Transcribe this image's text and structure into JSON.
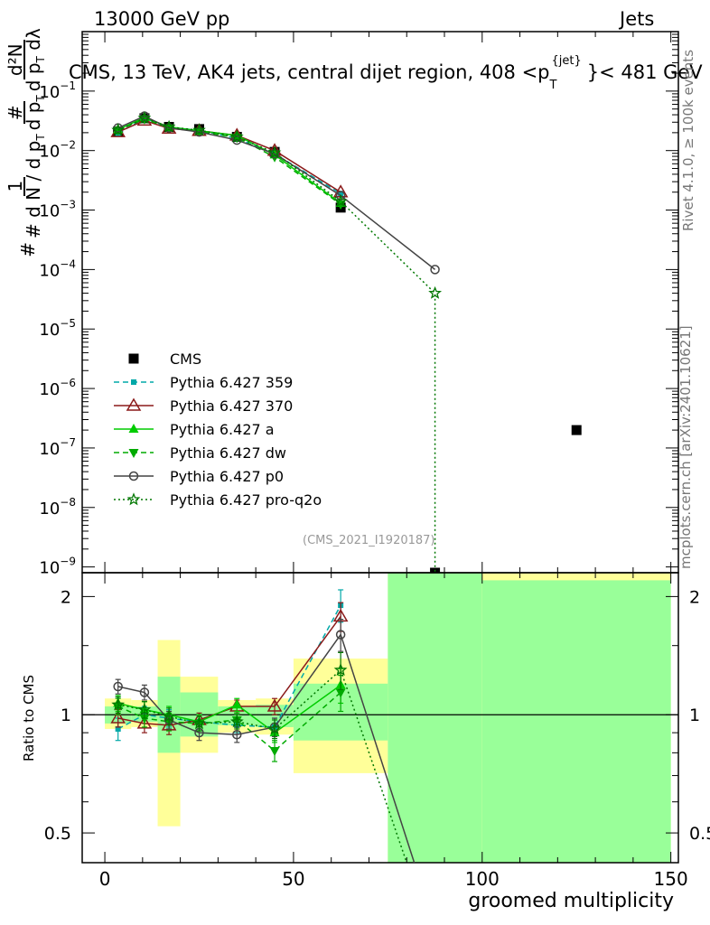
{
  "header": {
    "left": "13000 GeV pp",
    "right": "Jets",
    "plot_title": "CMS, 13 TeV, AK4 jets, central dijet region, 408 <p",
    "plot_title_sup": "{jet}",
    "plot_title_sub": "T",
    "plot_title_end": "}< 481 GeV",
    "side_right_top": "Rivet 4.1.0, ≥ 100k events",
    "side_right_bottom": "mcplots.cern.ch [arXiv:2401.10621]",
    "analysis_id": "(CMS_2021_I1920187)"
  },
  "ylabel_main": {
    "frac1_num": "1",
    "frac1_den": "# d N / d p",
    "frac1_den_sub": "T",
    "frac2_num": "#",
    "frac2_den": "d p",
    "frac2_den_sub": "T",
    "hash_left": "#",
    "frac3_num": "d²N",
    "frac3_den": "d p",
    "frac3_den_sub": "T",
    "frac3_den_end": "dλ"
  },
  "colors": {
    "CMS": "#000000",
    "Pythia 6.427 359": "#00a8a8",
    "Pythia 6.427 370": "#8b1a1a",
    "Pythia 6.427 a": "#00cc00",
    "Pythia 6.427 dw": "#00aa00",
    "Pythia 6.427 p0": "#444444",
    "Pythia 6.427 pro-q2o": "#007700",
    "band_yellow": "#ffff99",
    "band_green": "#99ff99"
  },
  "chart_data": [
    {
      "type": "scatter",
      "panel": "main",
      "xlabel": "groomed multiplicity",
      "ylim": [
        8e-10,
        1
      ],
      "log_y": true,
      "yticks": [
        1e-09,
        1e-08,
        1e-07,
        1e-06,
        1e-05,
        0.0001,
        0.001,
        0.01,
        0.1
      ],
      "ytick_labels": [
        "10^-9",
        "10^-8",
        "10^-7",
        "10^-6",
        "10^-5",
        "10^-4",
        "10^-3",
        "10^-2",
        "10^-1"
      ],
      "xlim": [
        -6,
        152
      ],
      "legend_position": "lower-left",
      "series": [
        {
          "name": "CMS",
          "style": "square",
          "dash": "none",
          "x": [
            3.5,
            10.5,
            17,
            25,
            35,
            45,
            62.5,
            87.5,
            125
          ],
          "y": [
            0.021,
            0.035,
            0.025,
            0.023,
            0.017,
            0.0095,
            0.0011,
            8e-10,
            2e-07
          ]
        },
        {
          "name": "Pythia 6.427 359",
          "style": "smallsquare",
          "dash": "dashed",
          "x": [
            3.5,
            10.5,
            17,
            25,
            35,
            45,
            62.5
          ],
          "y": [
            0.0195,
            0.035,
            0.0245,
            0.022,
            0.016,
            0.0088,
            0.0019
          ]
        },
        {
          "name": "Pythia 6.427 370",
          "style": "opentriangle",
          "dash": "solid",
          "x": [
            3.5,
            10.5,
            17,
            25,
            35,
            45,
            62.5
          ],
          "y": [
            0.0205,
            0.032,
            0.0235,
            0.0215,
            0.018,
            0.01,
            0.002
          ]
        },
        {
          "name": "Pythia 6.427 a",
          "style": "triangle",
          "dash": "solid",
          "x": [
            3.5,
            10.5,
            17,
            25,
            35,
            45,
            62.5
          ],
          "y": [
            0.0225,
            0.036,
            0.025,
            0.0215,
            0.018,
            0.0085,
            0.0013
          ]
        },
        {
          "name": "Pythia 6.427 dw",
          "style": "downtriangle",
          "dash": "dashed",
          "x": [
            3.5,
            10.5,
            17,
            25,
            35,
            45,
            62.5
          ],
          "y": [
            0.022,
            0.034,
            0.024,
            0.021,
            0.0165,
            0.0078,
            0.00125
          ]
        },
        {
          "name": "Pythia 6.427 p0",
          "style": "opencircle",
          "dash": "solid",
          "x": [
            3.5,
            10.5,
            17,
            25,
            35,
            45,
            62.5,
            87.5
          ],
          "y": [
            0.024,
            0.038,
            0.024,
            0.0205,
            0.015,
            0.0088,
            0.00175,
            0.0001
          ]
        },
        {
          "name": "Pythia 6.427 pro-q2o",
          "style": "star",
          "dash": "dotted",
          "x": [
            3.5,
            10.5,
            17,
            25,
            35,
            45,
            62.5,
            87.5,
            87.5
          ],
          "y": [
            0.022,
            0.035,
            0.025,
            0.022,
            0.017,
            0.0092,
            0.0014,
            4e-05,
            8e-10
          ]
        }
      ]
    },
    {
      "type": "scatter",
      "panel": "ratio",
      "ylabel": "Ratio to CMS",
      "xlabel": "groomed multiplicity",
      "ylim": [
        0.42,
        2.3
      ],
      "log_y": true,
      "xlim": [
        -6,
        152
      ],
      "xticks": [
        0,
        50,
        100,
        150
      ],
      "xtick_labels": [
        "0",
        "50",
        "100",
        "150"
      ],
      "yticks": [
        0.5,
        1,
        2
      ],
      "ytick_labels": [
        "0.5",
        "1",
        "2"
      ],
      "bands": [
        {
          "x0": 0,
          "x1": 7,
          "yellow": [
            0.92,
            1.1
          ],
          "green": [
            0.95,
            1.05
          ]
        },
        {
          "x0": 7,
          "x1": 14,
          "yellow": [
            0.93,
            1.09
          ],
          "green": [
            0.96,
            1.05
          ]
        },
        {
          "x0": 14,
          "x1": 20,
          "yellow": [
            0.52,
            1.55
          ],
          "green": [
            0.8,
            1.25
          ]
        },
        {
          "x0": 20,
          "x1": 30,
          "yellow": [
            0.8,
            1.25
          ],
          "green": [
            0.88,
            1.14
          ]
        },
        {
          "x0": 30,
          "x1": 40,
          "yellow": [
            0.9,
            1.09
          ],
          "green": [
            0.94,
            1.05
          ]
        },
        {
          "x0": 40,
          "x1": 50,
          "yellow": [
            0.89,
            1.1
          ],
          "green": [
            0.93,
            1.06
          ]
        },
        {
          "x0": 50,
          "x1": 75,
          "yellow": [
            0.71,
            1.39
          ],
          "green": [
            0.86,
            1.2
          ]
        },
        {
          "x0": 75,
          "x1": 100,
          "yellow": [
            0.42,
            2.3
          ],
          "green": [
            0.42,
            2.3
          ]
        },
        {
          "x0": 100,
          "x1": 150,
          "yellow": [
            0.42,
            2.3
          ],
          "green": [
            0.42,
            2.2
          ]
        }
      ],
      "series": [
        {
          "name": "Pythia 6.427 359",
          "style": "smallsquare",
          "dash": "dashed",
          "x": [
            3.5,
            10.5,
            17,
            25,
            35,
            45,
            62.5
          ],
          "y": [
            0.92,
            1.0,
            0.98,
            0.96,
            0.94,
            0.93,
            1.9
          ],
          "err": [
            0.06,
            0.05,
            0.05,
            0.04,
            0.04,
            0.05,
            0.18
          ]
        },
        {
          "name": "Pythia 6.427 370",
          "style": "opentriangle",
          "dash": "solid",
          "x": [
            3.5,
            10.5,
            17,
            25,
            35,
            45,
            62.5
          ],
          "y": [
            0.98,
            0.95,
            0.94,
            0.97,
            1.05,
            1.05,
            1.78
          ],
          "err": [
            0.05,
            0.05,
            0.05,
            0.04,
            0.04,
            0.05,
            0.15
          ]
        },
        {
          "name": "Pythia 6.427 a",
          "style": "triangle",
          "dash": "solid",
          "x": [
            3.5,
            10.5,
            17,
            25,
            35,
            45,
            62.5
          ],
          "y": [
            1.07,
            1.03,
            1.0,
            0.96,
            1.06,
            0.9,
            1.19
          ],
          "err": [
            0.05,
            0.05,
            0.05,
            0.04,
            0.04,
            0.05,
            0.12
          ]
        },
        {
          "name": "Pythia 6.427 dw",
          "style": "downtriangle",
          "dash": "dashed",
          "x": [
            3.5,
            10.5,
            17,
            25,
            35,
            45,
            62.5
          ],
          "y": [
            1.05,
            0.98,
            0.96,
            0.95,
            0.97,
            0.81,
            1.14
          ],
          "err": [
            0.05,
            0.05,
            0.05,
            0.04,
            0.04,
            0.05,
            0.12
          ]
        },
        {
          "name": "Pythia 6.427 p0",
          "style": "opencircle",
          "dash": "solid",
          "x": [
            3.5,
            10.5,
            17,
            25,
            35,
            45,
            62.5,
            82
          ],
          "y": [
            1.18,
            1.14,
            0.97,
            0.9,
            0.89,
            0.93,
            1.6,
            0.42
          ],
          "err": [
            0.05,
            0.05,
            0.05,
            0.04,
            0.04,
            0.05,
            0.15,
            0
          ]
        },
        {
          "name": "Pythia 6.427 pro-q2o",
          "style": "star",
          "dash": "dotted",
          "x": [
            3.5,
            10.5,
            17,
            25,
            35,
            45,
            62.5,
            80
          ],
          "y": [
            1.06,
            1.03,
            0.99,
            0.95,
            0.96,
            0.92,
            1.3,
            0.42
          ],
          "err": [
            0.05,
            0.05,
            0.05,
            0.04,
            0.04,
            0.05,
            0.14,
            0
          ]
        }
      ]
    }
  ]
}
